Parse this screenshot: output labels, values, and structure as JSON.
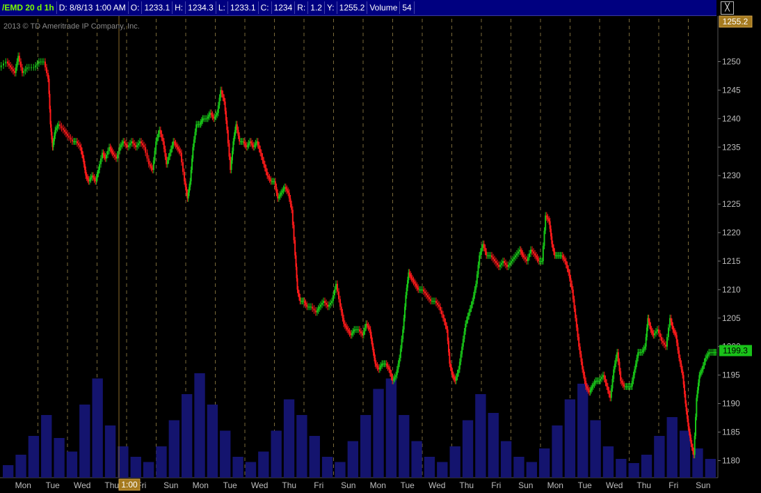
{
  "header": {
    "symbol": "/EMD 20 d 1h",
    "date_label": "D:",
    "date": "8/8/13 1:00 AM",
    "open_label": "O:",
    "open": "1233.1",
    "high_label": "H:",
    "high": "1234.3",
    "low_label": "L:",
    "low": "1233.1",
    "close_label": "C:",
    "close": "1234",
    "range_label": "R:",
    "range": "1.2",
    "y_label": "Y:",
    "y": "1255.2",
    "volume_label": "Volume",
    "volume": "54"
  },
  "copyright": "2013 © TD Ameritrade IP Company, Inc.",
  "crosshair_time_label": "1:00",
  "colors": {
    "up": "#18c718",
    "down": "#ff1a1a",
    "volume": "#14146e",
    "background": "#000000",
    "crosshair_badge": "#a57a1f",
    "last_badge": "#19c219"
  },
  "chart_data": {
    "type": "candlestick",
    "title": "/EMD 20 d 1h",
    "ylim": [
      1177,
      1258
    ],
    "y_ticks": [
      1180,
      1185,
      1190,
      1195,
      1200,
      1205,
      1210,
      1215,
      1220,
      1225,
      1230,
      1235,
      1240,
      1245,
      1250
    ],
    "crosshair_value": "1255.2",
    "last_price": "1199.3",
    "x_days": [
      "Mon",
      "Tue",
      "Wed",
      "Thu",
      "Fri",
      "Sun",
      "Mon",
      "Tue",
      "Wed",
      "Thu",
      "Fri",
      "Sun",
      "Mon",
      "Tue",
      "Wed",
      "Thu",
      "Fri",
      "Sun",
      "Mon",
      "Tue",
      "Wed",
      "Thu",
      "Fri",
      "Sun"
    ],
    "price_path": [
      [
        0,
        1249
      ],
      [
        10,
        1250
      ],
      [
        16,
        1249
      ],
      [
        22,
        1248
      ],
      [
        27,
        1251
      ],
      [
        33,
        1248
      ],
      [
        40,
        1249
      ],
      [
        50,
        1249
      ],
      [
        57,
        1250
      ],
      [
        64,
        1250
      ],
      [
        70,
        1247
      ],
      [
        73,
        1239
      ],
      [
        76,
        1235
      ],
      [
        80,
        1238
      ],
      [
        85,
        1239
      ],
      [
        92,
        1238
      ],
      [
        98,
        1237
      ],
      [
        105,
        1236
      ],
      [
        110,
        1236
      ],
      [
        116,
        1235
      ],
      [
        120,
        1233
      ],
      [
        124,
        1230
      ],
      [
        128,
        1229
      ],
      [
        133,
        1230
      ],
      [
        138,
        1229
      ],
      [
        142,
        1231
      ],
      [
        148,
        1234
      ],
      [
        152,
        1233
      ],
      [
        158,
        1235
      ],
      [
        162,
        1234
      ],
      [
        168,
        1233
      ],
      [
        173,
        1235
      ],
      [
        178,
        1236
      ],
      [
        184,
        1235
      ],
      [
        190,
        1236
      ],
      [
        196,
        1235
      ],
      [
        202,
        1236
      ],
      [
        208,
        1235
      ],
      [
        215,
        1232
      ],
      [
        220,
        1231
      ],
      [
        225,
        1236
      ],
      [
        230,
        1238
      ],
      [
        235,
        1236
      ],
      [
        240,
        1232
      ],
      [
        245,
        1234
      ],
      [
        250,
        1236
      ],
      [
        255,
        1235
      ],
      [
        260,
        1234
      ],
      [
        266,
        1229
      ],
      [
        270,
        1226
      ],
      [
        274,
        1229
      ],
      [
        278,
        1235
      ],
      [
        283,
        1239
      ],
      [
        288,
        1239
      ],
      [
        292,
        1240
      ],
      [
        298,
        1240
      ],
      [
        303,
        1241
      ],
      [
        308,
        1240
      ],
      [
        313,
        1241
      ],
      [
        318,
        1245
      ],
      [
        323,
        1243
      ],
      [
        327,
        1238
      ],
      [
        332,
        1231
      ],
      [
        336,
        1236
      ],
      [
        340,
        1239
      ],
      [
        345,
        1236
      ],
      [
        350,
        1236
      ],
      [
        355,
        1235
      ],
      [
        360,
        1236
      ],
      [
        365,
        1235
      ],
      [
        370,
        1236
      ],
      [
        375,
        1234
      ],
      [
        380,
        1232
      ],
      [
        385,
        1230
      ],
      [
        390,
        1229
      ],
      [
        395,
        1229
      ],
      [
        400,
        1226
      ],
      [
        405,
        1227
      ],
      [
        410,
        1228
      ],
      [
        415,
        1227
      ],
      [
        420,
        1224
      ],
      [
        425,
        1216
      ],
      [
        428,
        1210
      ],
      [
        432,
        1208
      ],
      [
        437,
        1208
      ],
      [
        442,
        1207
      ],
      [
        448,
        1207
      ],
      [
        455,
        1206
      ],
      [
        460,
        1207
      ],
      [
        466,
        1208
      ],
      [
        472,
        1207
      ],
      [
        478,
        1208
      ],
      [
        484,
        1211
      ],
      [
        490,
        1207
      ],
      [
        495,
        1204
      ],
      [
        500,
        1203
      ],
      [
        505,
        1202
      ],
      [
        510,
        1203
      ],
      [
        516,
        1203
      ],
      [
        522,
        1202
      ],
      [
        527,
        1204
      ],
      [
        532,
        1203
      ],
      [
        536,
        1200
      ],
      [
        540,
        1197
      ],
      [
        545,
        1196
      ],
      [
        550,
        1197
      ],
      [
        555,
        1197
      ],
      [
        560,
        1196
      ],
      [
        565,
        1194
      ],
      [
        570,
        1195
      ],
      [
        575,
        1198
      ],
      [
        580,
        1203
      ],
      [
        584,
        1209
      ],
      [
        588,
        1213
      ],
      [
        592,
        1212
      ],
      [
        597,
        1211
      ],
      [
        602,
        1210
      ],
      [
        608,
        1210
      ],
      [
        614,
        1209
      ],
      [
        620,
        1208
      ],
      [
        626,
        1208
      ],
      [
        632,
        1207
      ],
      [
        638,
        1205
      ],
      [
        643,
        1203
      ],
      [
        647,
        1197
      ],
      [
        651,
        1195
      ],
      [
        655,
        1194
      ],
      [
        660,
        1196
      ],
      [
        665,
        1200
      ],
      [
        670,
        1204
      ],
      [
        675,
        1206
      ],
      [
        680,
        1208
      ],
      [
        685,
        1211
      ],
      [
        690,
        1216
      ],
      [
        695,
        1218
      ],
      [
        700,
        1216
      ],
      [
        706,
        1216
      ],
      [
        712,
        1215
      ],
      [
        718,
        1214
      ],
      [
        724,
        1215
      ],
      [
        730,
        1214
      ],
      [
        736,
        1215
      ],
      [
        742,
        1216
      ],
      [
        748,
        1217
      ],
      [
        752,
        1216
      ],
      [
        758,
        1215
      ],
      [
        764,
        1217
      ],
      [
        770,
        1216
      ],
      [
        775,
        1215
      ],
      [
        780,
        1215
      ],
      [
        785,
        1223
      ],
      [
        790,
        1222
      ],
      [
        794,
        1218
      ],
      [
        798,
        1216
      ],
      [
        803,
        1216
      ],
      [
        808,
        1216
      ],
      [
        813,
        1215
      ],
      [
        818,
        1213
      ],
      [
        823,
        1210
      ],
      [
        828,
        1205
      ],
      [
        833,
        1200
      ],
      [
        838,
        1196
      ],
      [
        843,
        1193
      ],
      [
        848,
        1192
      ],
      [
        852,
        1193
      ],
      [
        857,
        1194
      ],
      [
        862,
        1194
      ],
      [
        868,
        1195
      ],
      [
        873,
        1193
      ],
      [
        878,
        1191
      ],
      [
        883,
        1196
      ],
      [
        888,
        1199
      ],
      [
        893,
        1194
      ],
      [
        898,
        1193
      ],
      [
        903,
        1193
      ],
      [
        908,
        1193
      ],
      [
        913,
        1196
      ],
      [
        918,
        1199
      ],
      [
        923,
        1199
      ],
      [
        928,
        1200
      ],
      [
        932,
        1205
      ],
      [
        936,
        1203
      ],
      [
        940,
        1202
      ],
      [
        946,
        1203
      ],
      [
        952,
        1201
      ],
      [
        958,
        1200
      ],
      [
        964,
        1205
      ],
      [
        968,
        1203
      ],
      [
        972,
        1202
      ],
      [
        977,
        1198
      ],
      [
        982,
        1195
      ],
      [
        986,
        1190
      ],
      [
        990,
        1186
      ],
      [
        994,
        1183
      ],
      [
        998,
        1181
      ],
      [
        1002,
        1191
      ],
      [
        1006,
        1195
      ],
      [
        1010,
        1196
      ],
      [
        1015,
        1198
      ],
      [
        1020,
        1199
      ],
      [
        1026,
        1199
      ],
      [
        1030,
        1199
      ]
    ],
    "volume_profile": [
      12,
      22,
      40,
      60,
      38,
      25,
      70,
      95,
      50,
      30,
      20,
      15,
      30,
      55,
      80,
      100,
      70,
      45,
      20,
      15,
      25,
      45,
      75,
      60,
      40,
      20,
      15,
      35,
      60,
      85,
      95,
      60,
      35,
      20,
      15,
      30,
      55,
      80,
      62,
      35,
      20,
      15,
      28,
      50,
      75,
      90,
      55,
      30,
      18,
      14,
      22,
      40,
      58,
      45,
      28,
      18
    ]
  }
}
